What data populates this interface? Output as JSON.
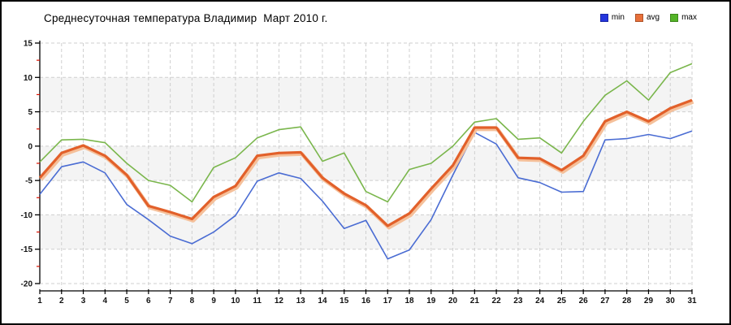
{
  "chart_data": {
    "type": "line",
    "title": "Среднесуточная температура Владимир  Март 2010 г.",
    "xlabel": "",
    "ylabel": "",
    "x": [
      1,
      2,
      3,
      4,
      5,
      6,
      7,
      8,
      9,
      10,
      11,
      12,
      13,
      14,
      15,
      16,
      17,
      18,
      19,
      20,
      21,
      22,
      23,
      24,
      25,
      26,
      27,
      28,
      29,
      30,
      31
    ],
    "ylim": [
      -20,
      15
    ],
    "yticks": [
      15,
      10,
      5,
      0,
      -5,
      -10,
      -15,
      -20
    ],
    "y_minor_step": 2.5,
    "grid": true,
    "stripes": true,
    "legend_position": "top-right",
    "colors": {
      "grid": "#cfcfcf",
      "stripe": "#f4f4f4",
      "axis": "#000000",
      "minor_tick": "#dd1100",
      "text": "#111111"
    },
    "series": [
      {
        "name": "min",
        "color": "#4a6cd3",
        "legend_color": "#2435dd",
        "width": 1.6,
        "values": [
          -7.0,
          -3.0,
          -2.3,
          -3.9,
          -8.5,
          -10.7,
          -13.1,
          -14.2,
          -12.5,
          -10.1,
          -5.1,
          -3.9,
          -4.7,
          -8.0,
          -12.0,
          -10.8,
          -16.4,
          -15.1,
          -10.7,
          -4.2,
          2.0,
          0.3,
          -4.6,
          -5.3,
          -6.7,
          -6.6,
          0.9,
          1.1,
          1.7,
          1.1,
          2.2
        ]
      },
      {
        "name": "avg",
        "color": "#e2602a",
        "legend_color": "#e8703a",
        "halo": "#f5c09a",
        "width": 3.2,
        "values": [
          -4.6,
          -1.0,
          0.1,
          -1.4,
          -4.2,
          -8.7,
          -9.6,
          -10.6,
          -7.4,
          -5.8,
          -1.4,
          -1.0,
          -0.9,
          -4.6,
          -6.9,
          -8.6,
          -11.6,
          -9.8,
          -6.2,
          -2.8,
          2.7,
          2.7,
          -1.7,
          -1.8,
          -3.5,
          -1.4,
          3.6,
          5.0,
          3.6,
          5.5,
          6.7
        ]
      },
      {
        "name": "max",
        "color": "#7ab64c",
        "legend_color": "#54b427",
        "width": 1.6,
        "values": [
          -2.3,
          0.9,
          1.0,
          0.5,
          -2.5,
          -5.0,
          -5.7,
          -8.1,
          -3.1,
          -1.7,
          1.2,
          2.4,
          2.8,
          -2.2,
          -1.0,
          -6.6,
          -8.1,
          -3.4,
          -2.5,
          0.0,
          3.5,
          4.0,
          1.0,
          1.2,
          -1.0,
          3.6,
          7.4,
          9.5,
          6.7,
          10.7,
          12.0
        ]
      }
    ]
  }
}
